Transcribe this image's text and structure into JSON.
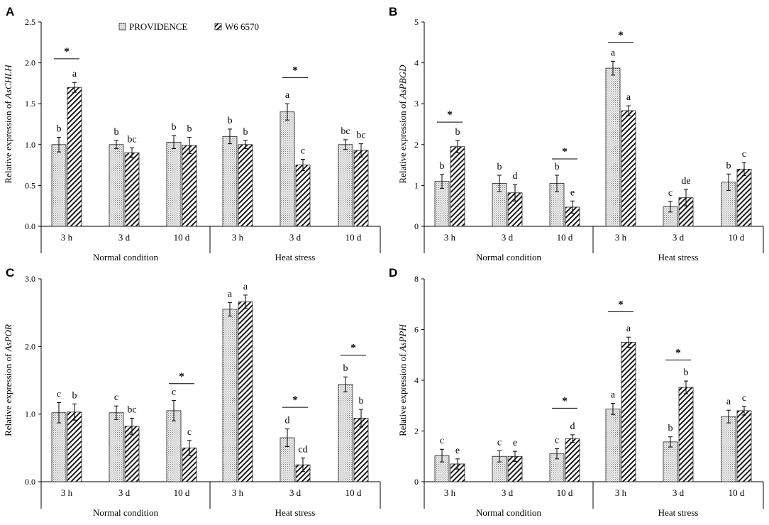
{
  "figure": {
    "legend": [
      "PROVIDENCE",
      "W6 6570"
    ],
    "colors": {
      "axis": "#000000",
      "bar_edge": "#222222",
      "dots": "#7a7a7a",
      "hatch": "#111111",
      "background": "#ffffff"
    }
  },
  "chart_data": [
    {
      "panel": "A",
      "type": "bar",
      "ylabel_prefix": "Relative expression of ",
      "gene": "AsCHLH",
      "ylim": [
        0,
        2.5
      ],
      "yticks": [
        "0.0",
        "0.5",
        "1.0",
        "1.5",
        "2.0",
        "2.5"
      ],
      "tick_values": [
        0,
        0.5,
        1.0,
        1.5,
        2.0,
        2.5
      ],
      "categories": [
        "3 h",
        "3 d",
        "10 d",
        "3 h",
        "3 d",
        "10 d"
      ],
      "groups": [
        "Normal condition",
        "Heat stress"
      ],
      "series": [
        {
          "name": "PROVIDENCE",
          "values": [
            1.0,
            1.0,
            1.03,
            1.1,
            1.4,
            1.0
          ],
          "errors": [
            0.09,
            0.05,
            0.08,
            0.09,
            0.1,
            0.06
          ],
          "letters": [
            "b",
            "b",
            "b",
            "b",
            "a",
            "bc"
          ]
        },
        {
          "name": "W6 6570",
          "values": [
            1.7,
            0.9,
            0.99,
            1.0,
            0.75,
            0.93
          ],
          "errors": [
            0.06,
            0.06,
            0.1,
            0.05,
            0.07,
            0.08
          ],
          "letters": [
            "a",
            "bc",
            "b",
            "b",
            "c",
            "bc"
          ]
        }
      ],
      "significance": [
        {
          "category": 0,
          "value": 2.05,
          "label": "*"
        },
        {
          "category": 4,
          "value": 1.82,
          "label": "*"
        }
      ]
    },
    {
      "panel": "B",
      "type": "bar",
      "ylabel_prefix": "Relative expression of ",
      "gene": "AsPBGD",
      "ylim": [
        0,
        5
      ],
      "yticks": [
        "0",
        "1",
        "2",
        "3",
        "4",
        "5"
      ],
      "tick_values": [
        0,
        1,
        2,
        3,
        4,
        5
      ],
      "categories": [
        "3 h",
        "3 d",
        "10 d",
        "3 h",
        "3 d",
        "10 d"
      ],
      "groups": [
        "Normal condition",
        "Heat stress"
      ],
      "series": [
        {
          "name": "PROVIDENCE",
          "values": [
            1.1,
            1.05,
            1.05,
            3.87,
            0.48,
            1.08
          ],
          "errors": [
            0.17,
            0.2,
            0.2,
            0.17,
            0.13,
            0.2
          ],
          "letters": [
            "b",
            "b",
            "b",
            "a",
            "c",
            "b"
          ]
        },
        {
          "name": "W6 6570",
          "values": [
            1.95,
            0.82,
            0.47,
            2.83,
            0.7,
            1.4
          ],
          "errors": [
            0.15,
            0.2,
            0.15,
            0.12,
            0.2,
            0.16
          ],
          "letters": [
            "b",
            "d",
            "e",
            "a",
            "de",
            "c"
          ]
        }
      ],
      "significance": [
        {
          "category": 0,
          "value": 2.55,
          "label": "*"
        },
        {
          "category": 2,
          "value": 1.65,
          "label": "*"
        },
        {
          "category": 3,
          "value": 4.5,
          "label": "*"
        }
      ]
    },
    {
      "panel": "C",
      "type": "bar",
      "ylabel_prefix": "Relative expression of ",
      "gene": "AsPOR",
      "ylim": [
        0,
        3.0
      ],
      "yticks": [
        "0.0",
        "1.0",
        "2.0",
        "3.0"
      ],
      "tick_values": [
        0,
        1.0,
        2.0,
        3.0
      ],
      "categories": [
        "3 h",
        "3 d",
        "10 d",
        "3 h",
        "3 d",
        "10 d"
      ],
      "groups": [
        "Normal condition",
        "Heat stress"
      ],
      "series": [
        {
          "name": "PROVIDENCE",
          "values": [
            1.02,
            1.02,
            1.05,
            2.55,
            0.65,
            1.44
          ],
          "errors": [
            0.15,
            0.1,
            0.15,
            0.1,
            0.13,
            0.11
          ],
          "letters": [
            "c",
            "c",
            "c",
            "a",
            "d",
            "b"
          ]
        },
        {
          "name": "W6 6570",
          "values": [
            1.03,
            0.82,
            0.5,
            2.66,
            0.25,
            0.94
          ],
          "errors": [
            0.12,
            0.12,
            0.11,
            0.1,
            0.1,
            0.13
          ],
          "letters": [
            "b",
            "bc",
            "c",
            "a",
            "cd",
            "b"
          ]
        }
      ],
      "significance": [
        {
          "category": 2,
          "value": 1.45,
          "label": "*"
        },
        {
          "category": 4,
          "value": 1.1,
          "label": "*"
        },
        {
          "category": 5,
          "value": 1.87,
          "label": "*"
        }
      ]
    },
    {
      "panel": "D",
      "type": "bar",
      "ylabel_prefix": "Relative expression of ",
      "gene": "AsPPH",
      "ylim": [
        0,
        8
      ],
      "yticks": [
        "0",
        "2",
        "4",
        "6",
        "8"
      ],
      "tick_values": [
        0,
        2,
        4,
        6,
        8
      ],
      "categories": [
        "3 h",
        "3 d",
        "10 d",
        "3 h",
        "3 d",
        "10 d"
      ],
      "groups": [
        "Normal condition",
        "Heat stress"
      ],
      "series": [
        {
          "name": "PROVIDENCE",
          "values": [
            1.03,
            1.0,
            1.1,
            2.87,
            1.57,
            2.57
          ],
          "errors": [
            0.25,
            0.22,
            0.2,
            0.22,
            0.2,
            0.25
          ],
          "letters": [
            "c",
            "c",
            "c",
            "a",
            "b",
            "a"
          ]
        },
        {
          "name": "W6 6570",
          "values": [
            0.7,
            1.0,
            1.7,
            5.5,
            3.72,
            2.8
          ],
          "errors": [
            0.2,
            0.2,
            0.15,
            0.2,
            0.25,
            0.17
          ],
          "letters": [
            "e",
            "e",
            "d",
            "a",
            "b",
            "c"
          ]
        }
      ],
      "significance": [
        {
          "category": 2,
          "value": 2.9,
          "label": "*"
        },
        {
          "category": 3,
          "value": 6.7,
          "label": "*"
        },
        {
          "category": 4,
          "value": 4.8,
          "label": "*"
        }
      ]
    }
  ]
}
